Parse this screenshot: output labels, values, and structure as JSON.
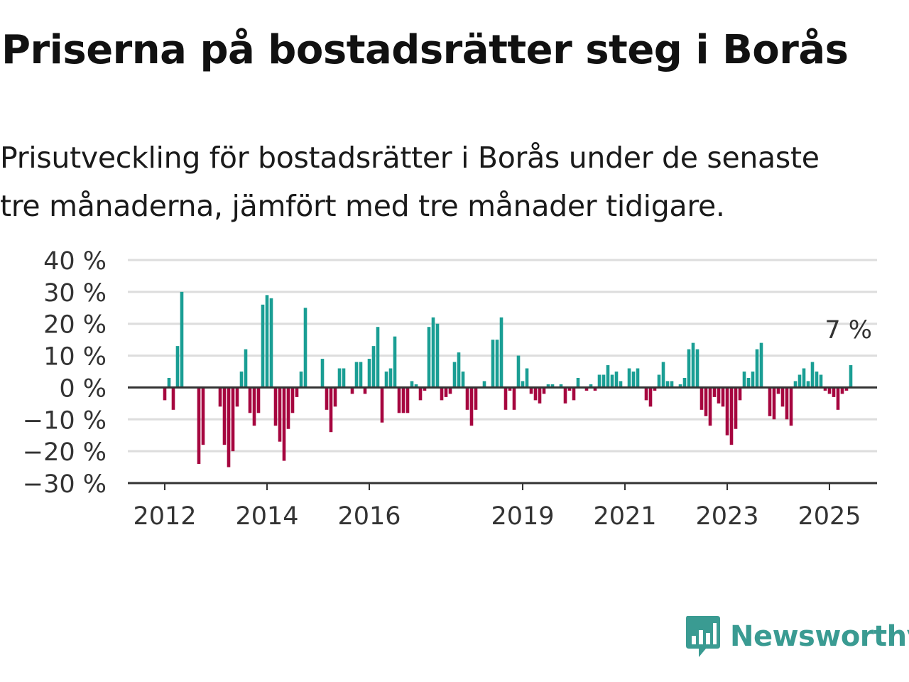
{
  "title": "Priserna på bostadsrätter steg i Borås",
  "subtitle_line1": "Prisutveckling för bostadsrätter i Borås under de senaste",
  "subtitle_line2": "tre månaderna, jämfört med tre månader tidigare.",
  "brand": {
    "name": "Newsworthy",
    "color": "#3a9b92",
    "icon": "newsworthy-logo-icon"
  },
  "colors": {
    "positive": "#1a9e94",
    "negative": "#a6053f",
    "grid": "#dddddd",
    "axis": "#333333"
  },
  "chart_data": {
    "type": "bar",
    "unit": "%",
    "ylim": [
      -30,
      40
    ],
    "yticks": [
      40,
      30,
      20,
      10,
      0,
      -10,
      -20,
      -30
    ],
    "ytick_labels": [
      "40 %",
      "30 %",
      "20 %",
      "10 %",
      "0 %",
      "−10 %",
      "−20 %",
      "−30 %"
    ],
    "grid": true,
    "x_start": "2012-01",
    "x_step": "month",
    "x_ticks": [
      {
        "label": "2012",
        "date": "2012-01"
      },
      {
        "label": "2014",
        "date": "2014-01"
      },
      {
        "label": "2016",
        "date": "2016-01"
      },
      {
        "label": "2019",
        "date": "2019-01"
      },
      {
        "label": "2021",
        "date": "2021-01"
      },
      {
        "label": "2023",
        "date": "2023-01"
      },
      {
        "label": "2025",
        "date": "2025-01"
      }
    ],
    "values": [
      -4,
      3,
      -7,
      13,
      30,
      0,
      0,
      0,
      -24,
      -18,
      0,
      0,
      0,
      -6,
      -18,
      -25,
      -20,
      -6,
      5,
      12,
      -8,
      -12,
      -8,
      26,
      29,
      28,
      -12,
      -17,
      -23,
      -13,
      -8,
      -3,
      5,
      25,
      0,
      0,
      0,
      9,
      -7,
      -14,
      -6,
      6,
      6,
      0,
      -2,
      8,
      8,
      -2,
      9,
      13,
      19,
      -11,
      5,
      6,
      16,
      -8,
      -8,
      -8,
      2,
      1,
      -4,
      -1,
      19,
      22,
      20,
      -4,
      -3,
      -2,
      8,
      11,
      5,
      -7,
      -12,
      -7,
      0,
      2,
      0,
      15,
      15,
      22,
      -7,
      -1,
      -7,
      10,
      2,
      6,
      -2,
      -4,
      -5,
      -2,
      1,
      1,
      0,
      1,
      -5,
      -1,
      -4,
      3,
      0,
      -1,
      1,
      -1,
      4,
      4,
      7,
      4,
      5,
      2,
      0,
      6,
      5,
      6,
      0,
      -4,
      -6,
      -1,
      4,
      8,
      2,
      2,
      0,
      1,
      3,
      12,
      14,
      12,
      -7,
      -9,
      -12,
      -3,
      -5,
      -6,
      -15,
      -18,
      -13,
      -4,
      5,
      3,
      5,
      12,
      14,
      0,
      -9,
      -10,
      -2,
      -6,
      -10,
      -12,
      2,
      4,
      6,
      2,
      8,
      5,
      4,
      -1,
      -2,
      -3,
      -7,
      -2,
      -1,
      7
    ],
    "annotation": {
      "label": "7 %",
      "value": 7
    }
  }
}
